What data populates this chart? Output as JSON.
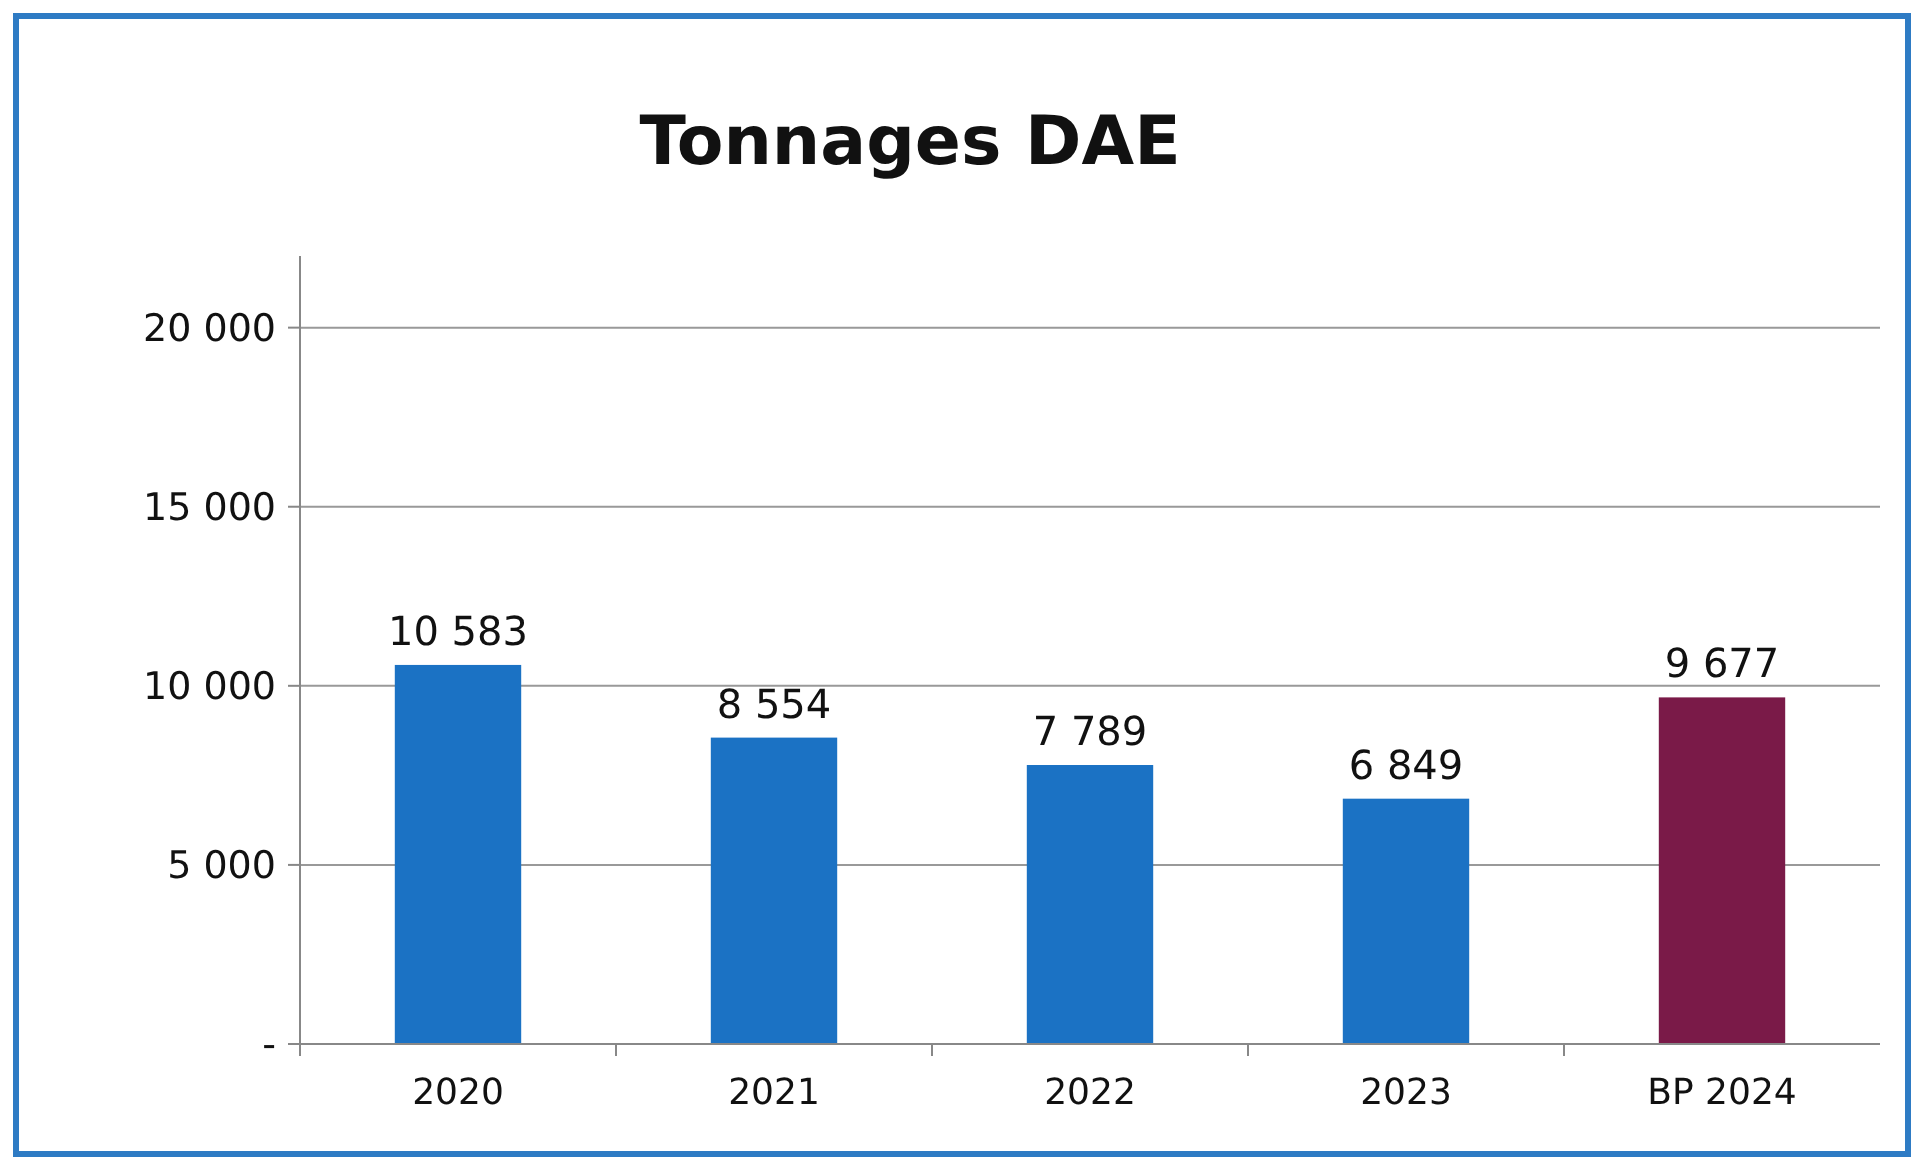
{
  "chart_data": {
    "type": "bar",
    "title": "Tonnages DAE",
    "categories": [
      "2020",
      "2021",
      "2022",
      "2023",
      "BP 2024"
    ],
    "values": [
      10583,
      8554,
      7789,
      6849,
      9677
    ],
    "value_labels": [
      "10 583",
      "8 554",
      "7 789",
      "6 849",
      "9 677"
    ],
    "colors": [
      "#1b72c4",
      "#1b72c4",
      "#1b72c4",
      "#1b72c4",
      "#7a1a48"
    ],
    "ylim": [
      0,
      22000
    ],
    "yticks": [
      {
        "value": 0,
        "label": "-"
      },
      {
        "value": 5000,
        "label": "5 000"
      },
      {
        "value": 10000,
        "label": "10 000"
      },
      {
        "value": 15000,
        "label": "15 000"
      },
      {
        "value": 20000,
        "label": "20 000"
      }
    ],
    "grid": "y"
  }
}
